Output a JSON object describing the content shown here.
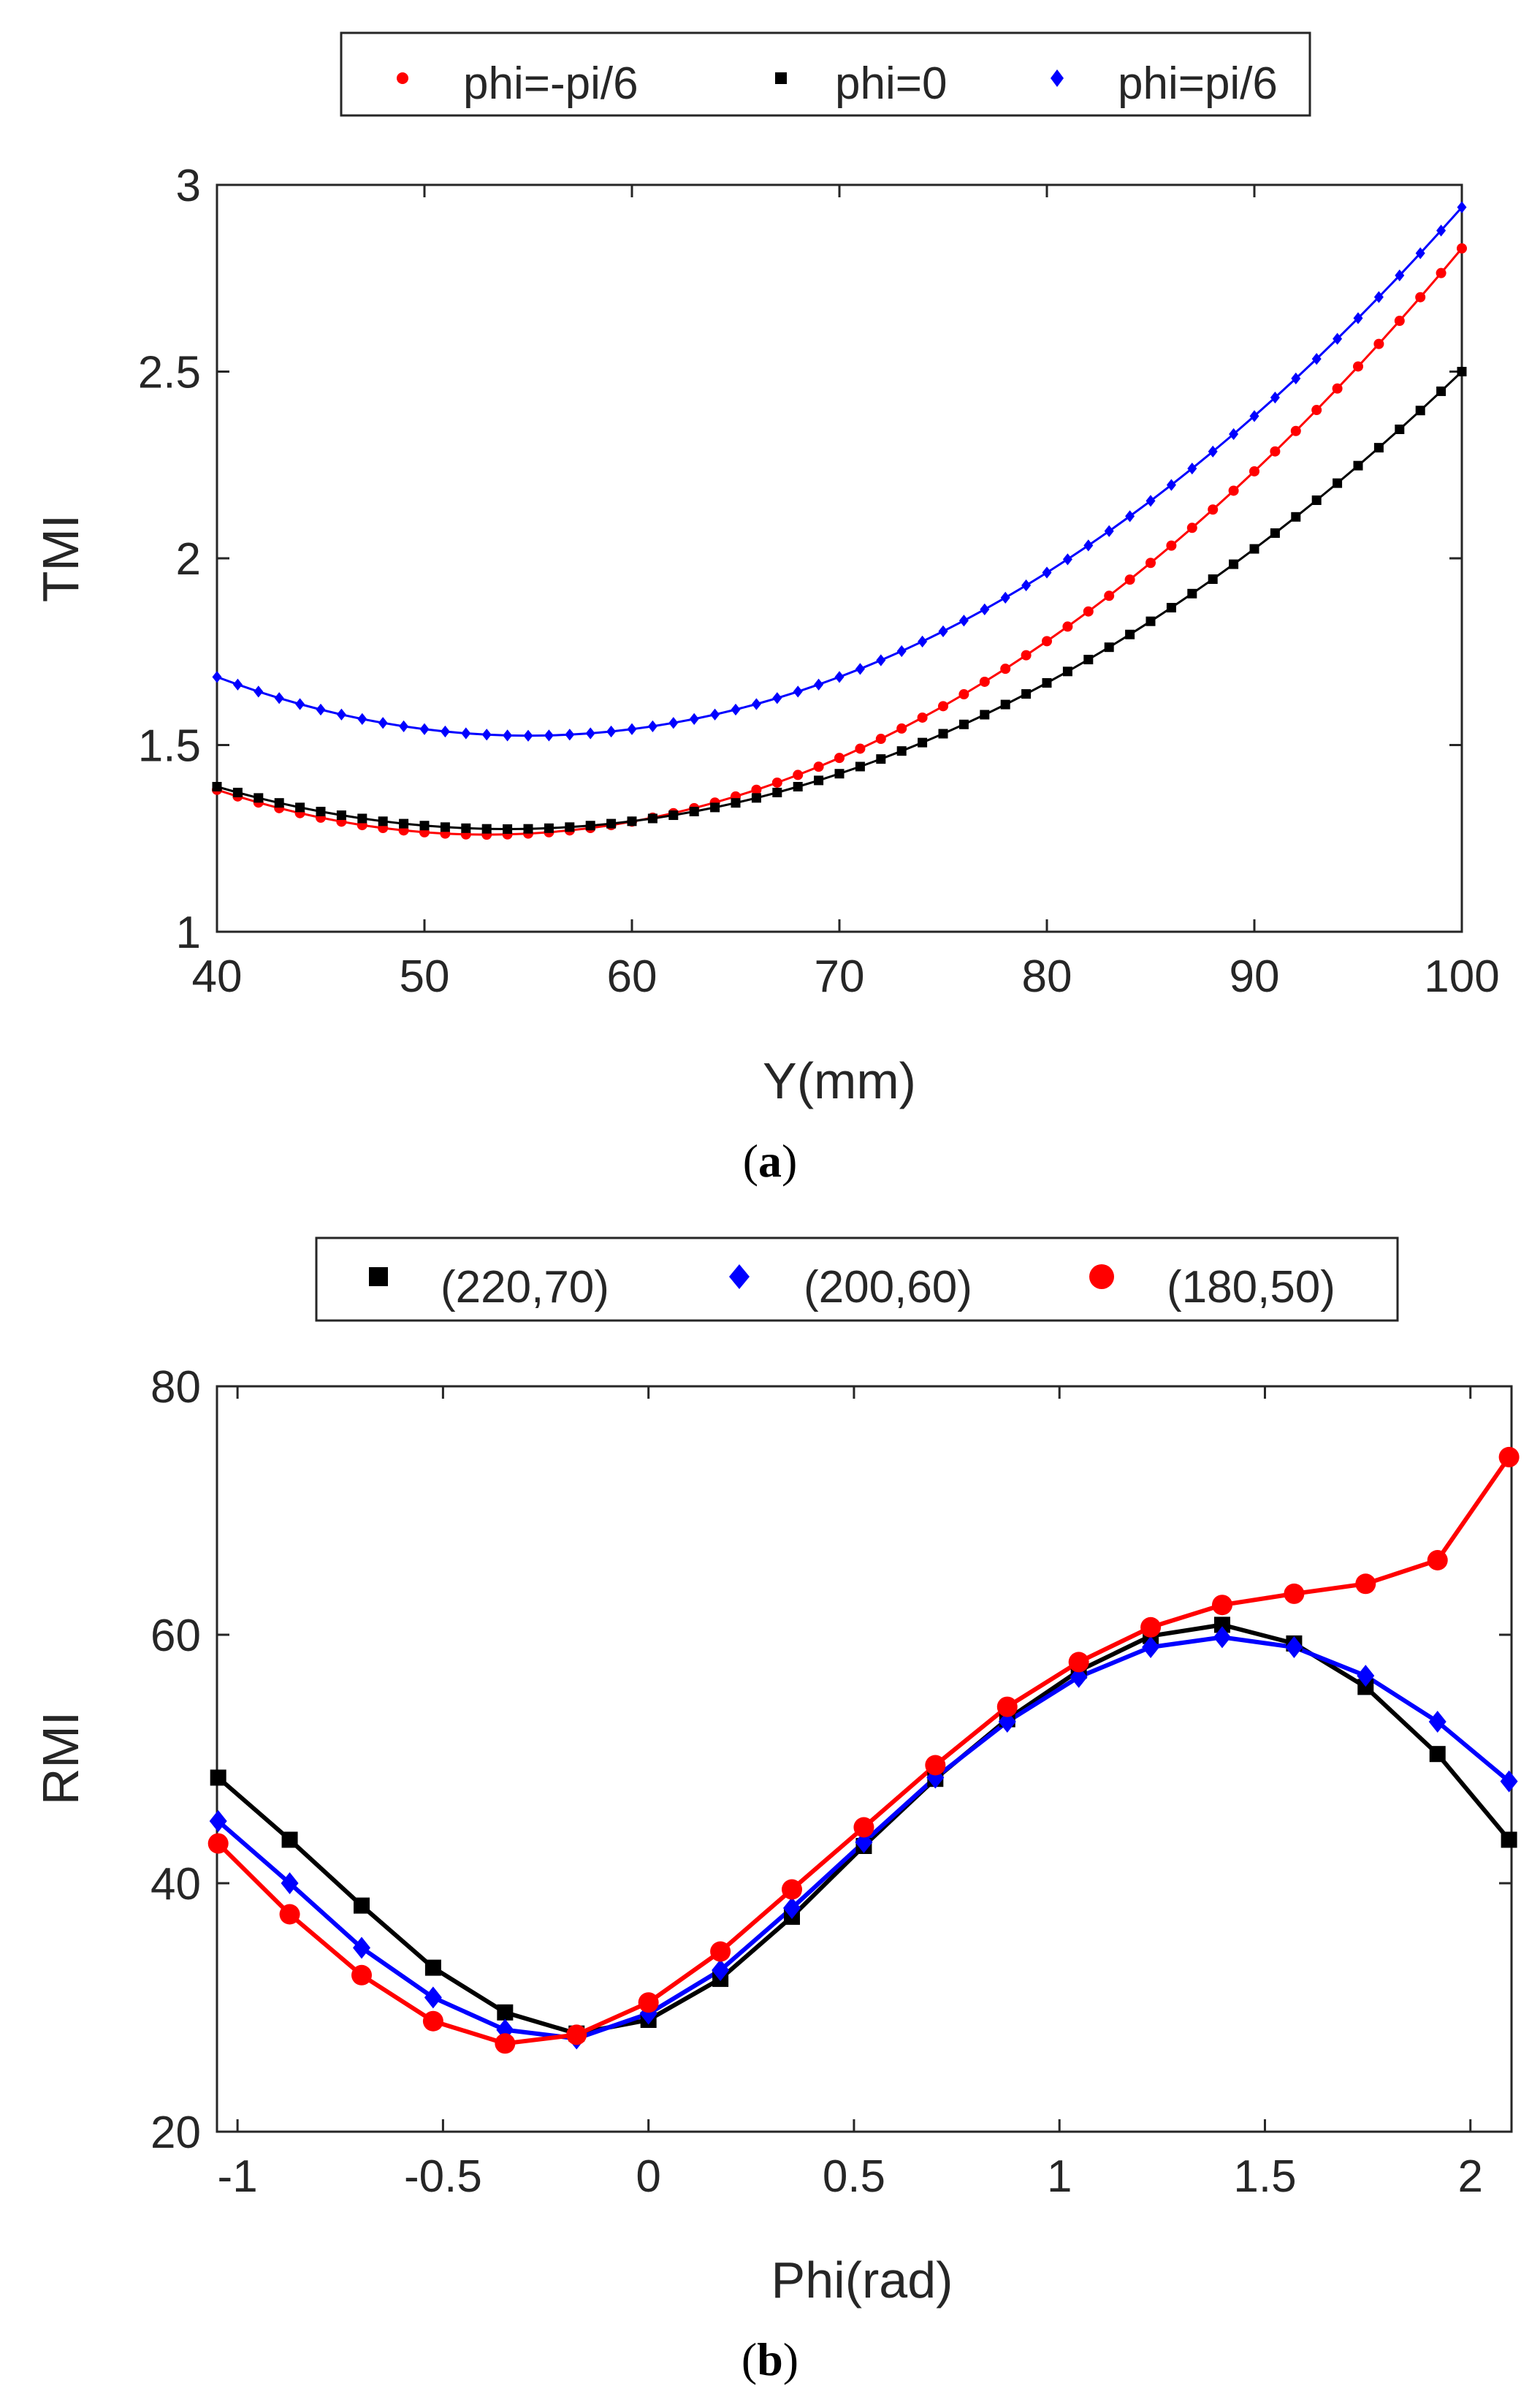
{
  "chart_data": [
    {
      "type": "line",
      "panel_label": "a",
      "xlabel": "Y(mm)",
      "ylabel": "TMI",
      "xlim": [
        40,
        100
      ],
      "ylim": [
        1,
        3
      ],
      "xticks": [
        40,
        50,
        60,
        70,
        80,
        90,
        100
      ],
      "yticks": [
        1,
        1.5,
        2,
        2.5,
        3
      ],
      "xtick_labels": [
        "40",
        "50",
        "60",
        "70",
        "80",
        "90",
        "100"
      ],
      "ytick_labels": [
        "1",
        "1.5",
        "2",
        "2.5",
        "3"
      ],
      "grid": false,
      "legend_position": "top",
      "x_start": 40,
      "x_step": 1,
      "n_points": 61,
      "series": [
        {
          "name": "phi=-pi/6",
          "color": "#ff0000",
          "marker": "circle",
          "vertex": 53,
          "min": 1.26,
          "end": 2.83
        },
        {
          "name": "phi=0",
          "color": "#000000",
          "marker": "square",
          "vertex": 54,
          "min": 1.275,
          "end": 2.5
        },
        {
          "name": "phi=pi/6",
          "color": "#0000ff",
          "marker": "diamond",
          "vertex": 55,
          "min": 1.525,
          "end": 2.94
        }
      ]
    },
    {
      "type": "line",
      "panel_label": "b",
      "xlabel": "Phi(rad)",
      "ylabel": "RMI",
      "xlim": [
        -1.05,
        2.1
      ],
      "ylim": [
        20,
        80
      ],
      "xticks": [
        -1,
        -0.5,
        0,
        0.5,
        1,
        1.5,
        2
      ],
      "yticks": [
        20,
        40,
        60,
        80
      ],
      "xtick_labels": [
        "-1",
        "-0.5",
        "0",
        "0.5",
        "1",
        "1.5",
        "2"
      ],
      "ytick_labels": [
        "20",
        "40",
        "60",
        "80"
      ],
      "grid": false,
      "legend_position": "top",
      "x": [
        -1.047,
        -0.873,
        -0.698,
        -0.524,
        -0.349,
        -0.175,
        0,
        0.175,
        0.349,
        0.524,
        0.698,
        0.873,
        1.047,
        1.222,
        1.396,
        1.571,
        1.745,
        1.92,
        2.094
      ],
      "series": [
        {
          "name": "(220,70)",
          "color": "#000000",
          "marker": "square",
          "values": [
            48.5,
            43.5,
            38.2,
            33.2,
            29.6,
            27.9,
            29.0,
            32.3,
            37.3,
            43.0,
            48.4,
            53.2,
            57.1,
            59.9,
            60.8,
            59.3,
            55.8,
            50.4,
            43.5
          ]
        },
        {
          "name": "(200,60)",
          "color": "#0000ff",
          "marker": "diamond",
          "values": [
            45.0,
            40.0,
            34.8,
            30.8,
            28.2,
            27.5,
            29.5,
            33.0,
            38.0,
            43.3,
            48.5,
            53.0,
            56.6,
            59.0,
            59.8,
            59.0,
            56.7,
            53.0,
            48.2
          ]
        },
        {
          "name": "(180,50)",
          "color": "#ff0000",
          "marker": "circle",
          "values": [
            43.2,
            37.5,
            32.6,
            28.9,
            27.1,
            27.8,
            30.4,
            34.5,
            39.5,
            44.5,
            49.5,
            54.2,
            57.8,
            60.6,
            62.4,
            63.3,
            64.1,
            66.0,
            74.3
          ]
        }
      ]
    }
  ]
}
